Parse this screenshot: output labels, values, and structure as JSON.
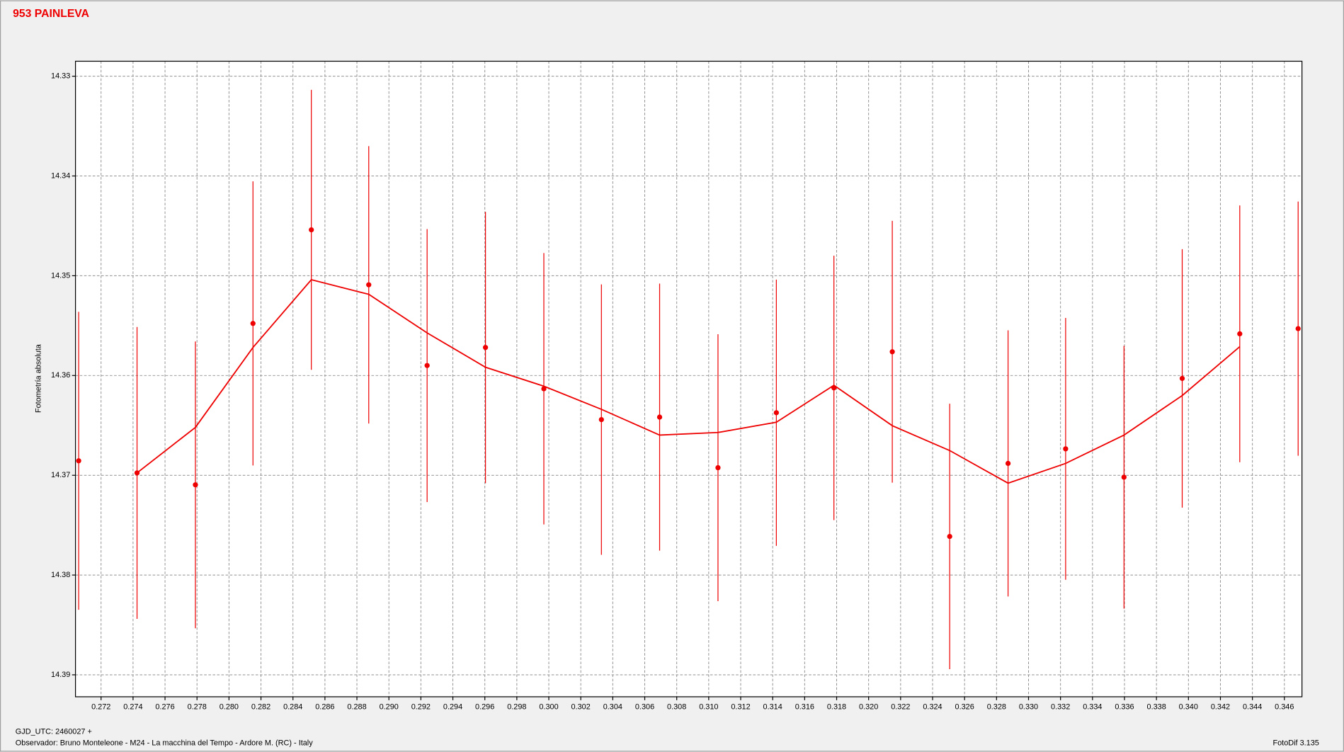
{
  "chart_data": {
    "type": "scatter",
    "title": "953 PAINLEVA",
    "y_label": "Fotometría absoluta",
    "footer": [
      "GJD_UTC: 2460027 +",
      "Observador: Bruno Monteleone - M24 - La macchina del Tempo - Ardore M. (RC) - Italy"
    ],
    "software": "FotoDif 3.135",
    "x": [
      0.2706,
      0.27425,
      0.2779,
      0.2815,
      0.28515,
      0.28874,
      0.29239,
      0.29604,
      0.29969,
      0.30329,
      0.30693,
      0.31058,
      0.31423,
      0.31783,
      0.32148,
      0.32507,
      0.32872,
      0.33232,
      0.33597,
      0.33961,
      0.34321,
      0.34686
    ],
    "series": [
      {
        "type": "errorbar",
        "color": "#ee0000",
        "values": [
          14.36855,
          14.36976,
          14.37096,
          14.35478,
          14.3454,
          14.35091,
          14.359,
          14.35719,
          14.36133,
          14.36442,
          14.36417,
          14.36924,
          14.36373,
          14.36124,
          14.35762,
          14.37613,
          14.36881,
          14.36735,
          14.37019,
          14.36029,
          14.35582,
          14.3553
        ],
        "errors": [
          0.01493,
          0.01463,
          0.01437,
          0.01424,
          0.01403,
          0.0139,
          0.01368,
          0.0136,
          0.0136,
          0.01355,
          0.01338,
          0.01338,
          0.01334,
          0.01325,
          0.01312,
          0.0133,
          0.01334,
          0.01312,
          0.01317,
          0.01295,
          0.01287,
          0.01274
        ]
      },
      {
        "type": "line",
        "color": "#ee0000",
        "values": [
          null,
          14.36976,
          14.3652,
          14.35719,
          14.3504,
          14.35186,
          14.35573,
          14.35917,
          14.36107,
          14.36339,
          14.36597,
          14.36571,
          14.36468,
          14.36098,
          14.36503,
          14.36752,
          14.37079,
          14.36881,
          14.36597,
          14.36201,
          14.35711,
          null
        ]
      }
    ],
    "xlim": [
      0.2704,
      0.3471
    ],
    "ylim": [
      14.3922,
      14.3285
    ],
    "xticks": [
      0.272,
      0.274,
      0.276,
      0.278,
      {
        "value": 0.28,
        "label": "0.280"
      },
      0.282,
      0.284,
      0.286,
      0.288,
      {
        "value": 0.29,
        "label": "0.290"
      },
      0.292,
      0.294,
      0.296,
      0.298,
      {
        "value": 0.3,
        "label": "0.300"
      },
      0.302,
      0.304,
      0.306,
      0.308,
      {
        "value": 0.31,
        "label": "0.310"
      },
      0.312,
      0.314,
      0.316,
      0.318,
      {
        "value": 0.32,
        "label": "0.320"
      },
      0.322,
      0.324,
      0.326,
      0.328,
      {
        "value": 0.33,
        "label": "0.330"
      },
      0.332,
      0.334,
      0.336,
      0.338,
      {
        "value": 0.34,
        "label": "0.340"
      },
      0.342,
      0.344,
      0.346
    ],
    "yticks": [
      14.33,
      14.34,
      14.35,
      14.36,
      14.37,
      14.38,
      14.39
    ],
    "grid": true
  }
}
